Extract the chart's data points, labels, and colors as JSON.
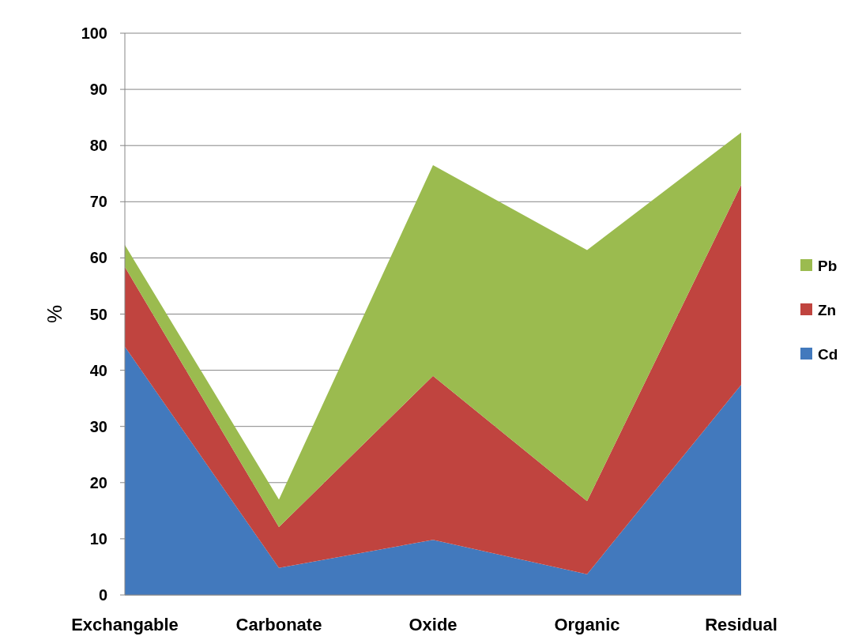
{
  "chart_data": {
    "type": "area",
    "stacked": true,
    "ylabel": "%",
    "categories": [
      "Exchangable",
      "Carbonate",
      "Oxide",
      "Organic",
      "Residual"
    ],
    "series": [
      {
        "name": "Cd",
        "color": "#4279bd",
        "values": [
          44.2,
          4.8,
          9.8,
          3.7,
          37.4
        ]
      },
      {
        "name": "Zn",
        "color": "#c0443f",
        "values": [
          14.2,
          7.3,
          29.2,
          13.0,
          35.6
        ]
      },
      {
        "name": "Pb",
        "color": "#9bbb4f",
        "values": [
          3.9,
          4.9,
          37.5,
          44.7,
          9.3
        ]
      }
    ],
    "ylim": [
      0,
      100
    ],
    "yticks": [
      0,
      10,
      20,
      30,
      40,
      50,
      60,
      70,
      80,
      90,
      100
    ],
    "grid": "y",
    "legend": "right"
  }
}
